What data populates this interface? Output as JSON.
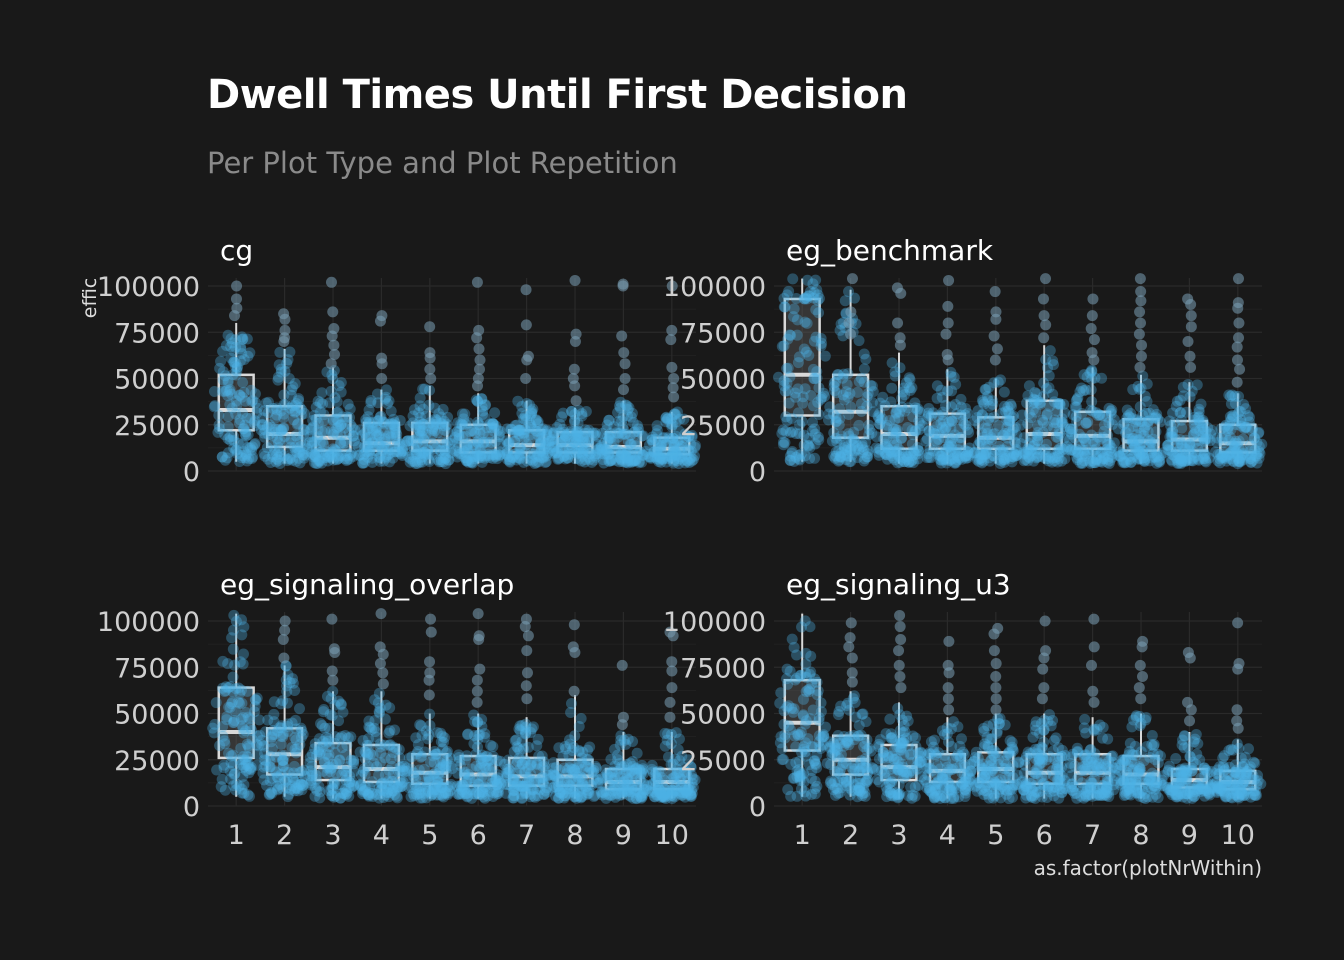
{
  "chart_data": {
    "type": "box",
    "title": "Dwell Times Until First Decision",
    "subtitle": "Per Plot Type and Plot Repetition",
    "xlabel": "as.factor(plotNrWithin)",
    "ylabel": "effic",
    "categories": [
      "1",
      "2",
      "3",
      "4",
      "5",
      "6",
      "7",
      "8",
      "9",
      "10"
    ],
    "y_ticks": [
      "100000",
      "75000",
      "50000",
      "25000",
      "0"
    ],
    "y_tick_values": [
      100000,
      75000,
      50000,
      25000,
      0
    ],
    "ylim": [
      0,
      100000
    ],
    "grid": true,
    "point_color": "#4db3e6",
    "box_color": "#d9d9d9",
    "background": "#191919",
    "facets": [
      {
        "name": "cg",
        "boxes": [
          {
            "q1": 22000,
            "median": 33000,
            "q3": 52000,
            "whisker_low": 5000,
            "whisker_high": 80000
          },
          {
            "q1": 13000,
            "median": 20000,
            "q3": 35000,
            "whisker_low": 4000,
            "whisker_high": 66000
          },
          {
            "q1": 11000,
            "median": 18000,
            "q3": 30000,
            "whisker_low": 4000,
            "whisker_high": 56000
          },
          {
            "q1": 11000,
            "median": 15000,
            "q3": 26000,
            "whisker_low": 4000,
            "whisker_high": 44000
          },
          {
            "q1": 11000,
            "median": 16000,
            "q3": 26000,
            "whisker_low": 4000,
            "whisker_high": 46000
          },
          {
            "q1": 10000,
            "median": 16000,
            "q3": 25000,
            "whisker_low": 4000,
            "whisker_high": 42000
          },
          {
            "q1": 10000,
            "median": 14000,
            "q3": 22000,
            "whisker_low": 4000,
            "whisker_high": 38000
          },
          {
            "q1": 10000,
            "median": 14000,
            "q3": 21000,
            "whisker_low": 4000,
            "whisker_high": 34000
          },
          {
            "q1": 10000,
            "median": 13000,
            "q3": 21000,
            "whisker_low": 4000,
            "whisker_high": 38000
          },
          {
            "q1": 9000,
            "median": 12000,
            "q3": 18000,
            "whisker_low": 4000,
            "whisker_high": 32000
          }
        ],
        "outliers": [
          [
            100000,
            93000,
            88000,
            84000
          ],
          [
            85000,
            82000,
            76000,
            72000,
            70000
          ],
          [
            102000,
            86000,
            77000,
            73000,
            68000,
            63000,
            58000
          ],
          [
            84000,
            81000,
            61000,
            58000,
            50000
          ],
          [
            78000,
            64000,
            61000,
            55000,
            50000
          ],
          [
            102000,
            76000,
            72000,
            66000,
            60000,
            55000,
            50000,
            46000
          ],
          [
            98000,
            79000,
            62000,
            60000,
            50000
          ],
          [
            103000,
            74000,
            70000,
            55000,
            50000,
            46000,
            38000
          ],
          [
            101000,
            100000,
            73000,
            64000,
            58000,
            50000,
            44000
          ],
          [
            100000,
            76000,
            71000,
            56000,
            50000,
            45000,
            40000
          ]
        ]
      },
      {
        "name": "eg_benchmark",
        "boxes": [
          {
            "q1": 30000,
            "median": 52000,
            "q3": 93000,
            "whisker_low": 5000,
            "whisker_high": 104000
          },
          {
            "q1": 18000,
            "median": 32000,
            "q3": 52000,
            "whisker_low": 5000,
            "whisker_high": 98000
          },
          {
            "q1": 12000,
            "median": 20000,
            "q3": 35000,
            "whisker_low": 4000,
            "whisker_high": 64000
          },
          {
            "q1": 12000,
            "median": 19000,
            "q3": 31000,
            "whisker_low": 4000,
            "whisker_high": 55000
          },
          {
            "q1": 12000,
            "median": 18000,
            "q3": 29000,
            "whisker_low": 4000,
            "whisker_high": 50000
          },
          {
            "q1": 12000,
            "median": 20000,
            "q3": 38000,
            "whisker_low": 4000,
            "whisker_high": 68000
          },
          {
            "q1": 12000,
            "median": 19000,
            "q3": 32000,
            "whisker_low": 4000,
            "whisker_high": 56000
          },
          {
            "q1": 11000,
            "median": 16000,
            "q3": 28000,
            "whisker_low": 4000,
            "whisker_high": 52000
          },
          {
            "q1": 11000,
            "median": 17000,
            "q3": 27000,
            "whisker_low": 4000,
            "whisker_high": 48000
          },
          {
            "q1": 10000,
            "median": 15000,
            "q3": 25000,
            "whisker_low": 4000,
            "whisker_high": 42000
          }
        ],
        "outliers": [
          [],
          [
            104000,
            86000,
            80000,
            74000
          ],
          [
            99000,
            96000,
            80000,
            72000,
            68000
          ],
          [
            103000,
            89000,
            80000,
            74000,
            63000,
            60000
          ],
          [
            97000,
            86000,
            82000,
            73000,
            66000,
            60000
          ],
          [
            104000,
            93000,
            84000,
            79000,
            72000
          ],
          [
            93000,
            84000,
            77000,
            71000,
            64000,
            60000
          ],
          [
            104000,
            97000,
            92000,
            86000,
            80000,
            74000,
            68000,
            62000,
            56000
          ],
          [
            93000,
            90000,
            84000,
            78000,
            70000,
            62000,
            56000
          ],
          [
            104000,
            91000,
            88000,
            80000,
            72000,
            67000,
            60000,
            55000,
            48000
          ]
        ]
      },
      {
        "name": "eg_signaling_overlap",
        "boxes": [
          {
            "q1": 26000,
            "median": 40000,
            "q3": 64000,
            "whisker_low": 5000,
            "whisker_high": 104000
          },
          {
            "q1": 17000,
            "median": 28000,
            "q3": 42000,
            "whisker_low": 5000,
            "whisker_high": 76000
          },
          {
            "q1": 14000,
            "median": 21000,
            "q3": 34000,
            "whisker_low": 4000,
            "whisker_high": 62000
          },
          {
            "q1": 13000,
            "median": 20000,
            "q3": 33000,
            "whisker_low": 4000,
            "whisker_high": 62000
          },
          {
            "q1": 12000,
            "median": 18000,
            "q3": 28000,
            "whisker_low": 4000,
            "whisker_high": 50000
          },
          {
            "q1": 11000,
            "median": 17000,
            "q3": 27000,
            "whisker_low": 4000,
            "whisker_high": 50000
          },
          {
            "q1": 11000,
            "median": 16000,
            "q3": 26000,
            "whisker_low": 4000,
            "whisker_high": 48000
          },
          {
            "q1": 11000,
            "median": 16000,
            "q3": 25000,
            "whisker_low": 4000,
            "whisker_high": 60000
          },
          {
            "q1": 9000,
            "median": 13000,
            "q3": 20000,
            "whisker_low": 4000,
            "whisker_high": 40000
          },
          {
            "q1": 9000,
            "median": 13000,
            "q3": 20000,
            "whisker_low": 4000,
            "whisker_high": 40000
          }
        ],
        "outliers": [
          [],
          [
            100000,
            95000,
            90000,
            80000
          ],
          [
            101000,
            85000,
            83000,
            73000,
            68000
          ],
          [
            104000,
            86000,
            82000,
            77000,
            72000,
            66000
          ],
          [
            101000,
            94000,
            78000,
            72000,
            68000,
            60000
          ],
          [
            104000,
            92000,
            90000,
            74000,
            68000,
            62000,
            56000
          ],
          [
            101000,
            97000,
            92000,
            84000,
            72000,
            65000,
            58000
          ],
          [
            98000,
            86000,
            83000,
            62000
          ],
          [
            76000,
            48000,
            44000
          ],
          [
            94000,
            92000,
            78000,
            73000,
            64000,
            56000,
            48000
          ]
        ]
      },
      {
        "name": "eg_signaling_u3",
        "boxes": [
          {
            "q1": 30000,
            "median": 45000,
            "q3": 68000,
            "whisker_low": 5000,
            "whisker_high": 104000
          },
          {
            "q1": 17000,
            "median": 25000,
            "q3": 38000,
            "whisker_low": 5000,
            "whisker_high": 62000
          },
          {
            "q1": 14000,
            "median": 21000,
            "q3": 33000,
            "whisker_low": 4000,
            "whisker_high": 56000
          },
          {
            "q1": 13000,
            "median": 19000,
            "q3": 28000,
            "whisker_low": 4000,
            "whisker_high": 48000
          },
          {
            "q1": 13000,
            "median": 20000,
            "q3": 29000,
            "whisker_low": 4000,
            "whisker_high": 50000
          },
          {
            "q1": 12000,
            "median": 18000,
            "q3": 28000,
            "whisker_low": 4000,
            "whisker_high": 50000
          },
          {
            "q1": 12000,
            "median": 18000,
            "q3": 28000,
            "whisker_low": 4000,
            "whisker_high": 48000
          },
          {
            "q1": 12000,
            "median": 17000,
            "q3": 27000,
            "whisker_low": 4000,
            "whisker_high": 50000
          },
          {
            "q1": 10000,
            "median": 14000,
            "q3": 20000,
            "whisker_low": 4000,
            "whisker_high": 40000
          },
          {
            "q1": 9000,
            "median": 13000,
            "q3": 19000,
            "whisker_low": 4000,
            "whisker_high": 36000
          }
        ],
        "outliers": [
          [],
          [
            99000,
            91000,
            86000,
            80000,
            72000,
            67000
          ],
          [
            103000,
            97000,
            90000,
            84000,
            76000,
            70000,
            64000
          ],
          [
            89000,
            76000,
            72000,
            64000,
            58000,
            52000
          ],
          [
            96000,
            93000,
            84000,
            77000,
            70000,
            64000,
            58000,
            52000
          ],
          [
            100000,
            84000,
            80000,
            74000,
            64000,
            58000
          ],
          [
            101000,
            86000,
            76000,
            62000,
            56000
          ],
          [
            89000,
            86000,
            76000,
            70000,
            64000,
            58000
          ],
          [
            83000,
            80000,
            56000,
            52000,
            46000
          ],
          [
            99000,
            77000,
            74000,
            52000,
            46000,
            42000
          ]
        ]
      }
    ]
  }
}
